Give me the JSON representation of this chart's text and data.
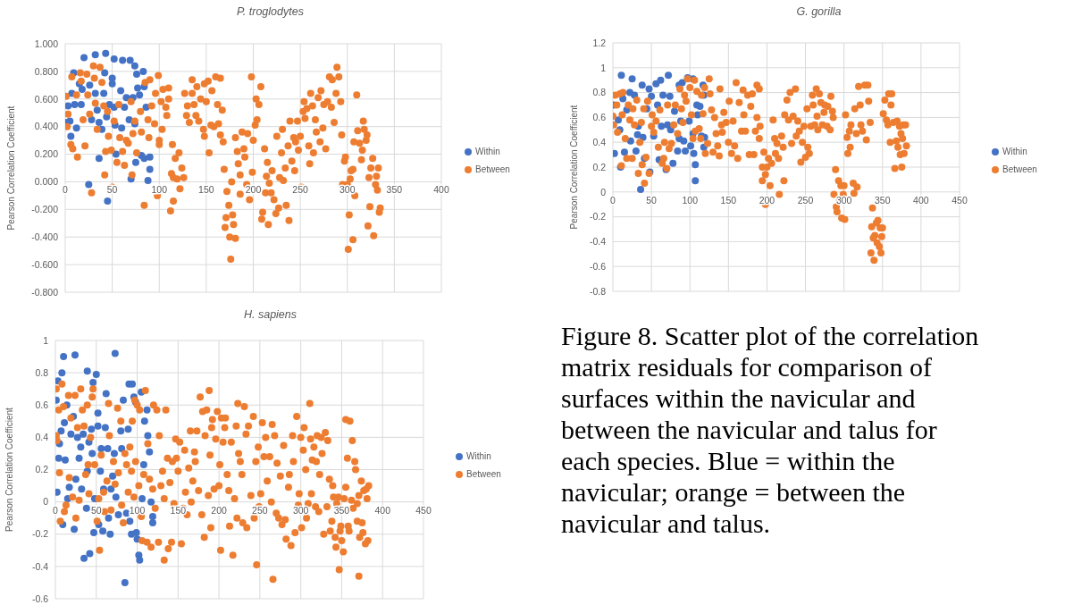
{
  "chart_data": [
    {
      "type": "scatter",
      "title": "P. troglodytes",
      "ylabel": "Pearson Correlation Coefficient",
      "xlim": [
        0,
        400
      ],
      "xticks": [
        0,
        50,
        100,
        150,
        200,
        250,
        300,
        350,
        400
      ],
      "ylim": [
        -0.8,
        1.0
      ],
      "yticks": [
        {
          "value": -0.8,
          "label": "-0.800"
        },
        {
          "value": -0.6,
          "label": "-0.600"
        },
        {
          "value": -0.4,
          "label": "-0.400"
        },
        {
          "value": -0.2,
          "label": "-0.200"
        },
        {
          "value": 0,
          "label": "0.000"
        },
        {
          "value": 0.2,
          "label": "0.200"
        },
        {
          "value": 0.4,
          "label": "0.400"
        },
        {
          "value": 0.6,
          "label": "0.600"
        },
        {
          "value": 0.8,
          "label": "0.800"
        },
        {
          "value": 1.0,
          "label": "1.000"
        }
      ],
      "grid": true,
      "legend": "right",
      "marker": "circle",
      "series": [
        {
          "name": "Within",
          "color": "#4472c4",
          "x": [
            20,
            32,
            43,
            52,
            61,
            69,
            74,
            9,
            42,
            76,
            83,
            15,
            18,
            26,
            50,
            50,
            59,
            77,
            84,
            7,
            32,
            41,
            79,
            65,
            72,
            3,
            10,
            17,
            34,
            47,
            52,
            56,
            63,
            86,
            0,
            5,
            6,
            12,
            28,
            36,
            39,
            44,
            53,
            60,
            68,
            74,
            56,
            48,
            36,
            54,
            62,
            75,
            81,
            84,
            90,
            90,
            70,
            88,
            25,
            45
          ],
          "values": [
            0.9,
            0.92,
            0.93,
            0.89,
            0.88,
            0.88,
            0.84,
            0.79,
            0.79,
            0.78,
            0.8,
            0.71,
            0.67,
            0.7,
            0.75,
            0.71,
            0.66,
            0.68,
            0.69,
            0.64,
            0.64,
            0.64,
            0.63,
            0.61,
            0.61,
            0.55,
            0.56,
            0.56,
            0.52,
            0.56,
            0.54,
            null,
            0.54,
            0.54,
            0.43,
            0.44,
            0.33,
            0.39,
            0.45,
            0.43,
            0.38,
            0.47,
            0.41,
            0.39,
            0.45,
            0.42,
            null,
            null,
            0.17,
            0.2,
            null,
            0.14,
            0.19,
            0.17,
            0.18,
            0.09,
            0.02,
            0.01,
            -0.02,
            -0.14
          ]
        },
        {
          "name": "Between",
          "color": "#ed7d31",
          "x": [
            1,
            2,
            3,
            7,
            6,
            8,
            12,
            13,
            16,
            17,
            19,
            21,
            23,
            24,
            26,
            28,
            30,
            31,
            32,
            34,
            37,
            39,
            41,
            42,
            43,
            45,
            46,
            49,
            50,
            52,
            55,
            57,
            58,
            61,
            63,
            65,
            67,
            70,
            71,
            72,
            74,
            76,
            80,
            81,
            84,
            85,
            88,
            89,
            90,
            92,
            95,
            96,
            98,
            99,
            100,
            100,
            102,
            103,
            104,
            107,
            108,
            110,
            110,
            112,
            113,
            114,
            115,
            115,
            117,
            119,
            121,
            122,
            124,
            126,
            127,
            129,
            130,
            132,
            135,
            135,
            137,
            139,
            140,
            142,
            144,
            147,
            148,
            148,
            150,
            152,
            153,
            155,
            156,
            158,
            160,
            162,
            163,
            165,
            165,
            167,
            168,
            169,
            170,
            171,
            172,
            174,
            175,
            176,
            177,
            178,
            179,
            181,
            181,
            183,
            184,
            186,
            186,
            188,
            190,
            191,
            193,
            194,
            196,
            198,
            199,
            200,
            202,
            203,
            204,
            206,
            208,
            209,
            210,
            212,
            213,
            214,
            215,
            216,
            217,
            219,
            220,
            222,
            224,
            225,
            227,
            228,
            230,
            231,
            232,
            234,
            235,
            237,
            238,
            239,
            241,
            243,
            244,
            245,
            247,
            248,
            250,
            251,
            253,
            254,
            255,
            257,
            259,
            260,
            261,
            263,
            264,
            266,
            267,
            269,
            271,
            272,
            274,
            275,
            277,
            279,
            281,
            283,
            284,
            286,
            288,
            289,
            291,
            293,
            294,
            295,
            297,
            298,
            300,
            301,
            302,
            303,
            304,
            306,
            306,
            307,
            308,
            310,
            311,
            313,
            315,
            316,
            317,
            318,
            320,
            321,
            323,
            322,
            324,
            325,
            327,
            328,
            330,
            331,
            332,
            333,
            334,
            335
          ],
          "values": [
            0.62,
            0.4,
            0.49,
            0.76,
            0.27,
            0.24,
            0.63,
            0.18,
            0.79,
            0.73,
            0.45,
            0.26,
            0.78,
            0.63,
            0.49,
            -0.08,
            0.84,
            0.75,
            0.57,
            0.38,
            0.83,
            0.72,
            0.55,
            0.05,
            0.22,
            0.51,
            0.33,
            0.23,
            -0.04,
            0.44,
            0.14,
            0.56,
            0.32,
            0.22,
            0.12,
            0.3,
            0.28,
            0.58,
            0.05,
            0.35,
            0.44,
            0.21,
            0.51,
            0.36,
            -0.17,
            0.72,
            0.45,
            0.32,
            0.74,
            0.55,
            0.42,
            0.64,
            -0.1,
            0.77,
            0.27,
            0.3,
            0.58,
            0.38,
            0.67,
            0.54,
            0.48,
            0.68,
            0.6,
            -0.21,
            0.06,
            0.27,
            -0.14,
            0.03,
            0.17,
            0.02,
            0.21,
            -0.05,
            0.1,
            0.03,
            0.64,
            0.48,
            0.55,
            0.43,
            0.64,
            0.74,
            0.56,
            0.48,
            0.69,
            0.44,
            0.6,
            0.38,
            0.33,
            0.71,
            0.58,
            0.73,
            0.21,
            0.41,
            0.66,
            0.4,
            0.76,
            0.56,
            0.42,
            0.34,
            0.75,
            0.52,
            0.29,
            0.09,
            -0.33,
            -0.26,
            -0.07,
            -0.17,
            -0.4,
            -0.56,
            0.0,
            -0.24,
            -0.31,
            -0.41,
            0.32,
            0.22,
            0.13,
            0.05,
            -0.09,
            0.36,
            0.24,
            0.18,
            -0.02,
            0.35,
            -0.13,
            0.76,
            0.07,
            0.3,
            0.41,
            0.6,
            0.45,
            0.56,
            0.69,
            -0.27,
            -0.22,
            0.24,
            -0.08,
            0.04,
            0.14,
            -0.31,
            -0.01,
            -0.08,
            0.08,
            -0.13,
            -0.23,
            0.33,
            -0.19,
            0.03,
            0.21,
            0.38,
            0.01,
            0.1,
            -0.17,
            0.26,
            -0.28,
            0.44,
            0.15,
            0.32,
            0.08,
            0.29,
            0.44,
            0.23,
            0.33,
            -0.04,
            0.51,
            0.58,
            0.46,
            0.53,
            0.26,
            0.13,
            0.64,
            0.55,
            0.21,
            0.45,
            0.36,
            0.61,
            0.29,
            0.66,
            0.39,
            0.56,
            0.24,
            0.58,
            0.76,
            0.54,
            0.74,
            0.43,
            0.64,
            0.83,
            0.76,
            0.58,
            0.34,
            -0.02,
            0.15,
            0.18,
            -0.02,
            -0.49,
            -0.24,
            0.02,
            0.08,
            0.09,
            -0.42,
            0.29,
            -0.1,
            0.63,
            0.37,
            0.28,
            0.16,
            0.23,
            0.44,
            0.38,
            0.3,
            0.34,
            0.03,
            -0.32,
            -0.18,
            0.1,
            0.17,
            -0.39,
            -0.02,
            0.04,
            -0.06,
            0.1,
            -0.22,
            -0.19
          ]
        }
      ]
    },
    {
      "type": "scatter",
      "title": "G. gorilla",
      "ylabel": "Pearson Correlation Coefficient",
      "xlim": [
        0,
        450
      ],
      "xticks": [
        0,
        50,
        100,
        150,
        200,
        250,
        300,
        350,
        400,
        450
      ],
      "ylim": [
        -0.8,
        1.2
      ],
      "yticks": [
        -0.8,
        -0.6,
        -0.4,
        -0.2,
        0,
        0.2,
        0.4,
        0.6,
        0.8,
        1,
        1.2
      ],
      "grid": true,
      "legend": "right",
      "marker": "circle",
      "series": [
        {
          "name": "Within",
          "color": "#4472c4",
          "x": [
            1,
            2,
            11,
            10,
            7,
            9,
            13,
            15,
            18,
            22,
            23,
            25,
            28,
            30,
            32,
            33,
            36,
            38,
            39,
            41,
            44,
            47,
            48,
            50,
            53,
            56,
            58,
            60,
            62,
            63,
            65,
            69,
            71,
            72,
            74,
            75,
            78,
            80,
            84,
            86,
            86,
            88,
            90,
            92,
            94,
            97,
            99,
            101,
            104,
            104,
            105,
            107,
            107,
            109,
            110,
            113,
            115,
            117,
            118,
            119,
            118
          ],
          "values": [
            0.7,
            0.31,
            0.94,
            0.2,
            0.58,
            0.5,
            0.75,
            0.32,
            0.66,
            0.8,
            0.41,
            0.91,
            0.78,
            0.33,
            0.46,
            0.53,
            0.02,
            0.86,
            0.44,
            0.27,
            0.67,
            0.83,
            0.16,
            0.77,
            0.45,
            0.87,
            0.7,
            0.26,
            0.9,
            0.53,
            0.78,
            0.18,
            0.54,
            0.94,
            0.77,
            0.5,
            0.23,
            0.65,
            0.33,
            0.43,
            0.86,
            0.57,
            0.88,
            0.41,
            0.33,
            0.92,
            0.57,
            0.37,
            0.91,
            0.47,
            0.31,
            0.09,
            0.22,
            0.7,
            0.62,
            0.69,
            0.45,
            0.86,
            0.36,
            0.44,
            0.78
          ]
        },
        {
          "name": "Between",
          "color": "#ed7d31",
          "x": [
            0,
            1,
            3,
            5,
            6,
            9,
            11,
            12,
            13,
            16,
            18,
            20,
            22,
            25,
            26,
            28,
            31,
            33,
            35,
            37,
            38,
            40,
            41,
            43,
            45,
            47,
            50,
            51,
            53,
            56,
            59,
            61,
            64,
            66,
            67,
            70,
            71,
            73,
            76,
            79,
            81,
            84,
            87,
            89,
            91,
            93,
            95,
            97,
            100,
            102,
            104,
            106,
            107,
            109,
            112,
            114,
            115,
            117,
            119,
            120,
            123,
            125,
            126,
            128,
            130,
            132,
            134,
            136,
            138,
            139,
            141,
            142,
            144,
            147,
            150,
            151,
            154,
            156,
            158,
            160,
            162,
            164,
            167,
            169,
            170,
            172,
            175,
            177,
            179,
            181,
            183,
            185,
            187,
            187,
            190,
            190,
            191,
            194,
            194,
            196,
            198,
            198,
            200,
            202,
            204,
            206,
            208,
            210,
            211,
            213,
            215,
            216,
            219,
            221,
            222,
            223,
            226,
            228,
            230,
            232,
            234,
            237,
            238,
            240,
            242,
            244,
            246,
            248,
            250,
            252,
            253,
            255,
            257,
            259,
            260,
            262,
            264,
            265,
            266,
            268,
            270,
            272,
            274,
            275,
            278,
            279,
            282,
            283,
            285,
            286,
            287,
            289,
            290,
            291,
            293,
            294,
            296,
            297,
            299,
            300,
            301,
            302,
            304,
            305,
            307,
            308,
            309,
            312,
            313,
            314,
            316,
            317,
            319,
            321,
            322,
            324,
            327,
            329,
            331,
            332,
            334,
            335,
            336,
            337,
            338,
            339,
            340,
            342,
            343,
            344,
            346,
            347,
            348,
            349,
            350,
            351,
            353,
            355,
            357,
            358,
            360,
            361,
            362,
            364,
            366,
            368,
            369,
            370,
            372,
            373,
            374,
            375,
            376,
            377,
            378,
            380,
            381
          ],
          "values": [
            0.61,
            0.54,
            0.78,
            0.7,
            0.48,
            0.79,
            0.21,
            0.62,
            0.8,
            0.43,
            0.27,
            0.7,
            0.58,
            0.27,
            0.67,
            0.54,
            0.74,
            0.15,
            0.4,
            0.56,
            0.22,
            0.67,
            0.07,
            0.28,
            0.73,
            0.15,
            0.53,
            0.62,
            0.48,
            0.57,
            0.36,
            0.66,
            0.23,
            0.27,
            0.4,
            0.19,
            0.7,
            0.35,
            0.39,
            0.54,
            0.7,
            0.47,
            0.83,
            0.67,
            0.56,
            0.78,
            0.73,
            0.91,
            0.84,
            0.62,
            0.43,
            0.9,
            0.49,
            0.81,
            0.51,
            0.43,
            0.78,
            0.63,
            0.84,
            0.31,
            0.39,
            0.91,
            0.79,
            0.66,
            0.32,
            0.6,
            0.47,
            0.37,
            0.29,
            0.83,
            0.54,
            0.48,
            0.64,
            0.56,
            0.4,
            0.73,
            0.31,
            0.57,
            0.37,
            0.88,
            0.27,
            0.72,
            0.49,
            0.82,
            0.62,
            0.49,
            0.78,
            0.3,
            0.69,
            0.79,
            0.3,
            0.49,
            0.86,
            0.6,
            0.83,
            0.43,
            0.53,
            0.2,
            0.09,
            0.32,
            -0.1,
            0.14,
            0.2,
            0.27,
            0.05,
            0.23,
            0.58,
            0.43,
            0.31,
            0.39,
            0.27,
            -0.02,
            0.45,
            0.36,
            0.09,
            0.62,
            0.74,
            0.58,
            0.8,
            0.39,
            0.61,
            0.83,
            0.45,
            0.57,
            0.49,
            0.24,
            0.4,
            0.53,
            0.28,
            0.67,
            0.36,
            0.31,
            0.53,
            0.78,
            0.7,
            0.54,
            0.83,
            0.61,
            0.5,
            0.79,
            0.72,
            0.54,
            0.64,
            0.7,
            0.53,
            0.69,
            0.5,
            0.77,
            0.65,
            0.6,
            -0.02,
            0.18,
            -0.12,
            -0.16,
            0.09,
            -0.07,
            0.05,
            -0.21,
            -0.02,
            0.05,
            -0.22,
            0.62,
            0.44,
            0.31,
            0.49,
            0.36,
            0.54,
            0.07,
            -0.01,
            0.67,
            0.47,
            0.04,
            0.85,
            0.7,
            0.54,
            0.49,
            0.86,
            0.42,
            0.86,
            0.73,
            0.56,
            -0.49,
            -0.28,
            -0.13,
            -0.37,
            -0.55,
            -0.35,
            -0.25,
            -0.41,
            -0.23,
            -0.44,
            -0.29,
            -0.49,
            -0.36,
            -0.29,
            0.63,
            0.74,
            0.58,
            0.54,
            0.79,
            0.4,
            0.7,
            0.79,
            0.56,
            0.19,
            0.41,
            0.57,
            0.36,
            0.53,
            0.3,
            0.47,
            0.2,
            0.43,
            0.54,
            0.31,
            0.54,
            0.37
          ]
        }
      ]
    },
    {
      "type": "scatter",
      "title": "H. sapiens",
      "ylabel": "Pearson Correlation Coefficient",
      "xlim": [
        0,
        450
      ],
      "xticks": [
        0,
        50,
        100,
        150,
        200,
        250,
        300,
        350,
        400,
        450
      ],
      "ylim": [
        -0.6,
        1
      ],
      "yticks": [
        -0.6,
        -0.4,
        -0.2,
        0,
        0.2,
        0.4,
        0.6,
        0.8,
        1
      ],
      "grid": true,
      "legend": "right",
      "marker": "circle",
      "series": [
        {
          "name": "Within",
          "color": "#4472c4",
          "x": [
            1,
            2,
            3,
            4,
            5,
            7,
            8,
            9,
            10,
            11,
            12,
            14,
            15,
            17,
            19,
            22,
            23,
            24,
            25,
            27,
            29,
            31,
            32,
            34,
            35,
            38,
            39,
            39,
            41,
            42,
            44,
            45,
            46,
            47,
            48,
            50,
            52,
            52,
            53,
            55,
            56,
            58,
            59,
            61,
            62,
            64,
            65,
            67,
            68,
            70,
            72,
            73,
            74,
            77,
            80,
            81,
            83,
            85,
            87,
            89,
            90,
            91,
            94,
            93,
            96,
            98,
            99,
            100,
            102,
            103,
            105,
            106,
            108,
            109,
            112,
            113,
            115,
            117,
            119,
            119
          ],
          "values": [
            0.63,
            0.06,
            0.75,
            0.27,
            0.36,
            0.44,
            0.8,
            -0.14,
            0.9,
            0.49,
            0.26,
            0.6,
            0.02,
            0.09,
            0.42,
            0.53,
            -0.17,
            0.91,
            0.14,
            0.4,
            0.27,
            0.34,
            0.08,
            0.42,
            -0.35,
            -0.04,
            0.81,
            0.19,
            0.37,
            -0.32,
            0.45,
            0.3,
            0.74,
            -0.19,
            0.02,
            0.79,
            0.47,
            0.55,
            -0.14,
            0.19,
            0.33,
            -0.18,
            0.08,
            0.46,
            0.67,
            0.33,
            -0.1,
            -0.2,
            0.08,
            0.16,
            0.3,
            0.92,
            0.03,
            -0.08,
            0.44,
            0.33,
            0.63,
            -0.5,
            -0.07,
            0.45,
            0.73,
            -0.12,
            0.73,
            -0.2,
            0.65,
            0.62,
            -0.19,
            -0.23,
            -0.33,
            -0.36,
            0.68,
            0.02,
            0.23,
            0.5,
            0.57,
            0.41,
            0.31,
            0.0,
            -0.13,
            -0.09
          ]
        },
        {
          "name": "Between",
          "color": "#ed7d31",
          "x": [
            1,
            1,
            2,
            4,
            5,
            6,
            8,
            10,
            11,
            13,
            16,
            17,
            19,
            21,
            24,
            25,
            27,
            29,
            31,
            33,
            35,
            37,
            39,
            40,
            41,
            43,
            45,
            46,
            48,
            51,
            53,
            54,
            56,
            59,
            60,
            63,
            65,
            66,
            68,
            71,
            73,
            76,
            77,
            80,
            81,
            83,
            85,
            87,
            89,
            91,
            93,
            94,
            96,
            97,
            98,
            100,
            102,
            103,
            105,
            106,
            108,
            110,
            112,
            113,
            115,
            117,
            119,
            120,
            122,
            124,
            126,
            127,
            129,
            131,
            133,
            133,
            135,
            137,
            138,
            140,
            142,
            143,
            145,
            147,
            148,
            150,
            152,
            154,
            156,
            158,
            159,
            161,
            163,
            165,
            166,
            168,
            170,
            171,
            173,
            175,
            177,
            179,
            180,
            182,
            183,
            185,
            187,
            188,
            189,
            190,
            191,
            192,
            194,
            196,
            198,
            200,
            201,
            203,
            202,
            205,
            207,
            208,
            210,
            212,
            213,
            215,
            217,
            219,
            221,
            222,
            223,
            224,
            226,
            228,
            229,
            231,
            233,
            234,
            236,
            239,
            242,
            243,
            245,
            246,
            248,
            249,
            251,
            253,
            255,
            257,
            259,
            262,
            264,
            265,
            266,
            268,
            270,
            271,
            273,
            275,
            277,
            279,
            281,
            282,
            285,
            286,
            288,
            290,
            291,
            293,
            295,
            297,
            298,
            300,
            301,
            303,
            304,
            306,
            307,
            309,
            311,
            312,
            313,
            314,
            316,
            318,
            319,
            320,
            322,
            323,
            325,
            326,
            328,
            330,
            332,
            333,
            335,
            336,
            338,
            339,
            340,
            342,
            343,
            344,
            346,
            347,
            348,
            349,
            350,
            352,
            353,
            355,
            355,
            357,
            358,
            359,
            360,
            362,
            363,
            364,
            366,
            367,
            369,
            369,
            371,
            371,
            372,
            374,
            375,
            376,
            377,
            379,
            380,
            381,
            382,
            383
          ],
          "values": [
            0.7,
            0.41,
            0.38,
            0.57,
            0.18,
            -0.12,
            0.73,
            0.59,
            -0.06,
            -0.02,
            0.66,
            0.15,
            0.52,
            0.03,
            0.66,
            -0.1,
            0.46,
            0.01,
            0.7,
            0.57,
            0.47,
            0.17,
            0.6,
            0.23,
            0.05,
            0.4,
            0.65,
            0.7,
            0.23,
            -0.12,
            0.02,
            -0.3,
            0.29,
            0.06,
            -0.06,
            0.13,
            0.61,
            0.41,
            -0.05,
            0.25,
            0.11,
            0.58,
            0.18,
            0.5,
            -0.02,
            -0.13,
            0.3,
            0.23,
            0.06,
            0.34,
            0.19,
            0.5,
            0.03,
            0.63,
            0.25,
            0.6,
            0.1,
            0.57,
            -0.09,
            -0.24,
            0.17,
            0.69,
            -0.25,
            0.36,
            0.14,
            -0.28,
            0.08,
            0.6,
            -0.04,
            0.57,
            -0.25,
            0.41,
            0.1,
            0.19,
            0.02,
            -0.36,
            0.57,
            0.27,
            -0.29,
            0.12,
            -0.25,
            0.25,
            -0.01,
            0.39,
            0.27,
            0.19,
            0.37,
            -0.26,
            -0.04,
            0.32,
            0.06,
            -0.08,
            0.21,
            0.44,
            0.0,
            0.13,
            0.31,
            0.25,
            0.44,
            0.07,
            0.65,
            -0.08,
            0.56,
            -0.22,
            0.41,
            0.57,
            0.04,
            0.69,
            0.29,
            -0.16,
            0.46,
            0.51,
            0.08,
            0.39,
            0.56,
            0.1,
            0.23,
            0.52,
            -0.3,
            0.37,
            0.46,
            0.52,
            0.17,
            0.07,
            -0.15,
            0.37,
            -0.33,
            0.02,
            0.47,
            -0.1,
            0.61,
            0.3,
            0.25,
            0.17,
            -0.13,
            0.59,
            0.42,
            -0.16,
            0.47,
            0.04,
            0.53,
            -0.1,
            0.25,
            -0.39,
            0.34,
            -0.03,
            0.05,
            0.49,
            0.28,
            0.4,
            0.13,
            0.28,
            0.0,
            0.48,
            -0.48,
            0.41,
            -0.07,
            0.24,
            -0.1,
            0.16,
            -0.14,
            0.35,
            -0.11,
            -0.23,
            0.09,
            0.17,
            -0.27,
            0.41,
            0.25,
            -0.19,
            0.53,
            -0.02,
            0.05,
            0.4,
            -0.16,
            0.32,
            0.46,
            0.2,
            -0.1,
            -0.01,
            0.61,
            0.39,
            0.05,
            0.26,
            0.34,
            -0.03,
            0.25,
            0.41,
            -0.06,
            0.17,
            0.4,
            0.3,
            -0.2,
            0.43,
            -0.03,
            0.38,
            0.14,
            -0.18,
            -0.12,
            0.1,
            0.03,
            -0.22,
            -0.28,
            -0.01,
            0.03,
            -0.42,
            -0.18,
            -0.15,
            -0.24,
            -0.31,
            0.02,
            0.51,
            0.09,
            0.27,
            -0.15,
            -0.18,
            0.5,
            0.01,
            0.38,
            -0.04,
            0.25,
            0.2,
            -0.01,
            -0.12,
            0.04,
            -0.46,
            -0.22,
            0.13,
            -0.13,
            -0.19,
            0.07,
            -0.26,
            0.08,
            0.02,
            -0.24,
            0.1
          ]
        }
      ]
    },
    {
      "type": "other",
      "annotations": [
        "Figure 8. Scatter plot of the correlation matrix residuals for comparison of surfaces within the navicular and between the navicular and talus for each species. Blue = within the navicular; orange = between the navicular and talus."
      ]
    }
  ]
}
